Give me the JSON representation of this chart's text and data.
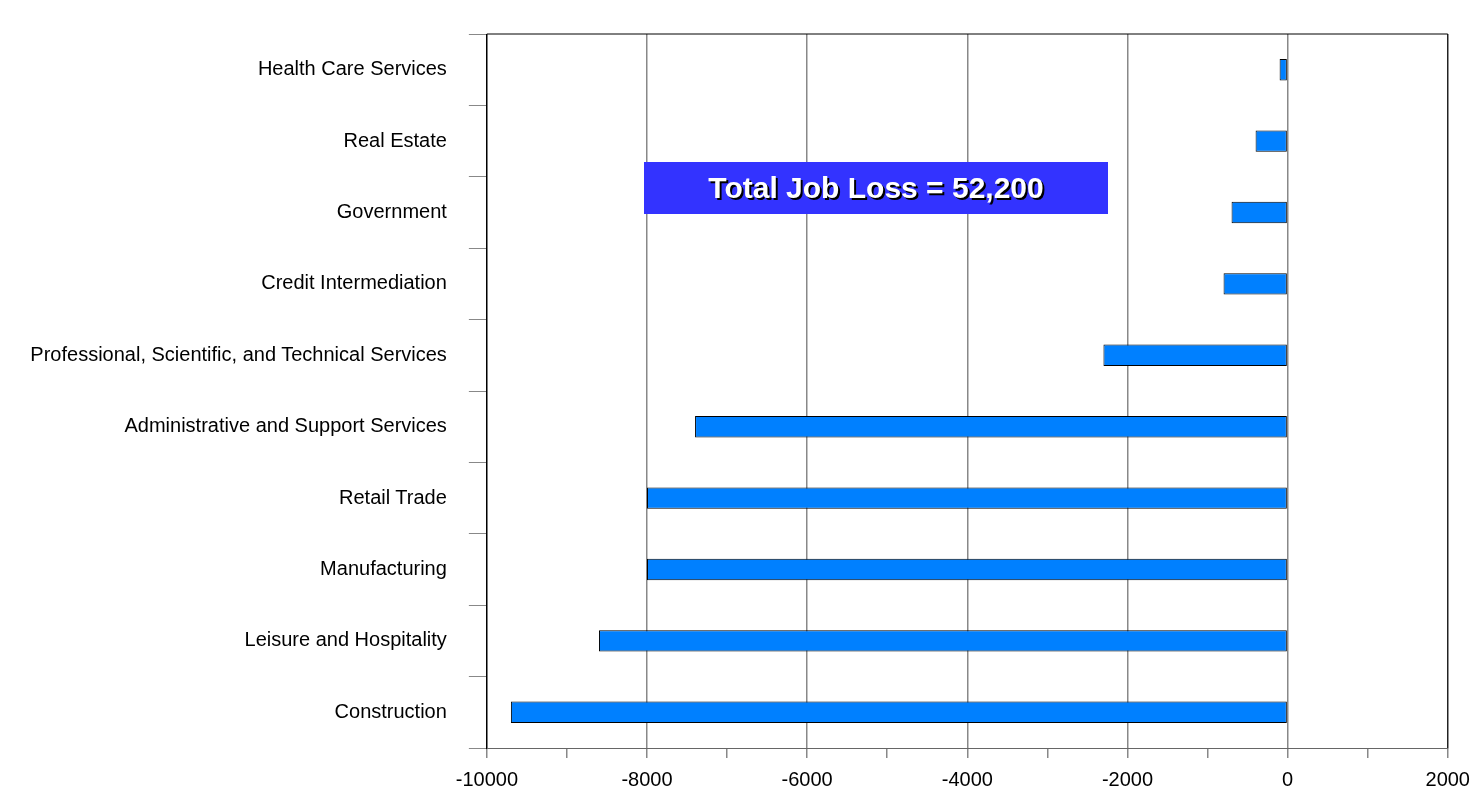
{
  "chart_data": {
    "type": "bar",
    "orientation": "horizontal",
    "categories": [
      "Health Care Services",
      "Real Estate",
      "Government",
      "Credit Intermediation",
      "Professional, Scientific, and Technical Services",
      "Administrative and Support Services",
      "Retail Trade",
      "Manufacturing",
      "Leisure and Hospitality",
      "Construction"
    ],
    "values": [
      -100,
      -400,
      -700,
      -800,
      -2300,
      -7400,
      -8000,
      -8000,
      -8600,
      -9700
    ],
    "color": "#0080ff",
    "xlim": [
      -10000,
      2000
    ],
    "xticks": [
      -10000,
      {
        "value": -9000,
        "label": null
      },
      -8000,
      {
        "value": -7000,
        "label": null
      },
      -6000,
      {
        "value": -5000,
        "label": null
      },
      -4000,
      {
        "value": -3000,
        "label": null
      },
      -2000,
      {
        "value": -1000,
        "label": null
      },
      0,
      {
        "value": 1000,
        "label": null
      },
      2000
    ],
    "grid": "x",
    "legend": false,
    "annotations": [
      "Total Job Loss = 52,200"
    ]
  }
}
